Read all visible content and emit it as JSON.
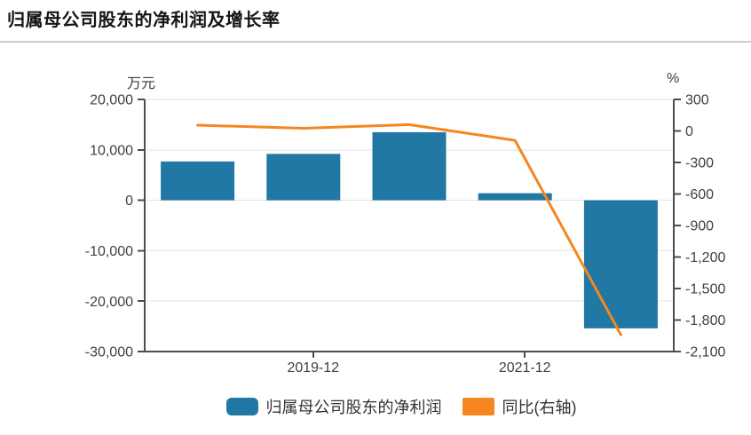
{
  "page": {
    "title": "归属母公司股东的净利润及增长率"
  },
  "colors": {
    "bar_blue": "#2178a4",
    "line_orange": "#f6861f",
    "grid": "#e3e3e3",
    "axis": "#4d4d4d",
    "label": "#404040"
  },
  "chart_data": {
    "type": "combo-bar-line",
    "title": "归属母公司股东的净利润及增长率",
    "grid": true,
    "legend_position": "bottom",
    "left_axis": {
      "unit": "万元",
      "max": 20000,
      "min": -30000,
      "tick_step": 10000,
      "tick_values": [
        20000,
        10000,
        0,
        -10000,
        -20000,
        -30000
      ],
      "tick_labels": [
        "20,000",
        "10,000",
        "0",
        "-10,000",
        "-20,000",
        "-30,000"
      ]
    },
    "right_axis": {
      "unit": "%",
      "max": 300,
      "min": -2100,
      "tick_step": 300,
      "tick_values": [
        300,
        0,
        -300,
        -600,
        -900,
        -1200,
        -1500,
        -1800,
        -2100
      ],
      "tick_labels": [
        "300",
        "0",
        "-300",
        "-600",
        "-900",
        "-1,200",
        "-1,500",
        "-1,800",
        "-2,100"
      ]
    },
    "x_axis": {
      "num_groups": 5,
      "ticks": [
        {
          "position": 1,
          "label": "2019-12"
        },
        {
          "position": 3,
          "label": "2021-12"
        }
      ]
    },
    "series": [
      {
        "name": "归属母公司股东的净利润",
        "type": "bar",
        "axis": "left",
        "color": "#2178a4",
        "values": [
          7700,
          9200,
          13500,
          1400,
          -25400
        ]
      },
      {
        "name": "同比(右轴)",
        "type": "line",
        "axis": "right",
        "color": "#f6861f",
        "values": [
          55,
          25,
          60,
          -90,
          -1940
        ]
      }
    ],
    "legend": {
      "items": [
        {
          "label": "归属母公司股东的净利润",
          "color": "#2178a4"
        },
        {
          "label": "同比(右轴)",
          "color": "#f6861f"
        }
      ]
    }
  }
}
